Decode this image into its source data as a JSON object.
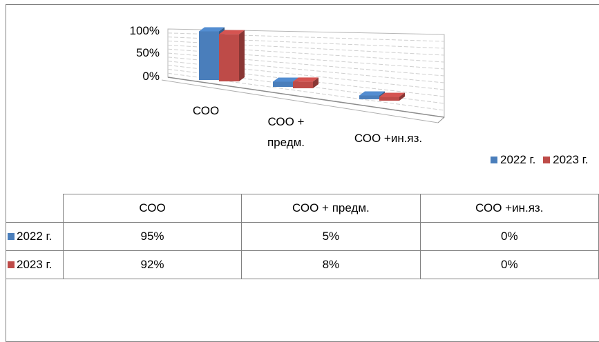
{
  "chart_data": {
    "type": "bar",
    "categories": [
      "СОО",
      "СОО + предм.",
      "СОО +ин.яз."
    ],
    "category_labels_lines": [
      [
        "СОО"
      ],
      [
        "СОО +",
        "предм."
      ],
      [
        "СОО +ин.яз."
      ]
    ],
    "series": [
      {
        "name": "2022 г.",
        "values": [
          95,
          5,
          0
        ],
        "display": [
          "95%",
          "5%",
          "0%"
        ],
        "color": "#4a7ebb"
      },
      {
        "name": "2023 г.",
        "values": [
          92,
          8,
          0
        ],
        "display": [
          "92%",
          "8%",
          "0%"
        ],
        "color": "#be4b48"
      }
    ],
    "y_ticks": [
      "100%",
      "50%",
      "0%"
    ],
    "ylim": [
      0,
      100
    ],
    "style": "3d-clustered-column",
    "legend_position": "right",
    "grid": true,
    "data_table": true
  }
}
